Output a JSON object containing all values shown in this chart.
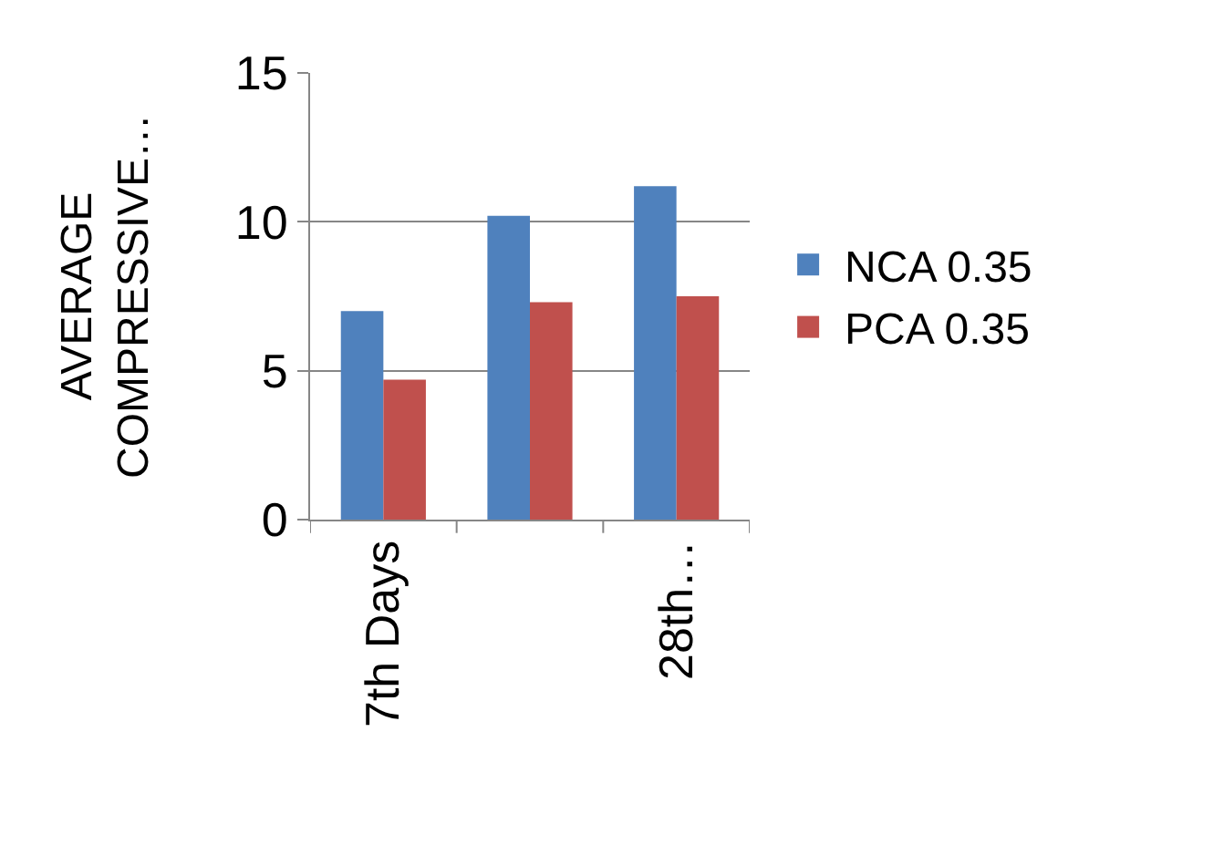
{
  "chart_data": {
    "type": "bar",
    "ylabel": "AVERAGE\nCOMPRESSIVE…",
    "categories": [
      "7th Days",
      null,
      "28th…"
    ],
    "series": [
      {
        "name": "NCA 0.35",
        "color": "#4f81bd",
        "values": [
          7.0,
          10.2,
          11.2
        ]
      },
      {
        "name": "PCA 0.35",
        "color": "#c0504d",
        "values": [
          4.7,
          7.3,
          7.5
        ]
      }
    ],
    "ylim": [
      0,
      15
    ],
    "yticks": [
      0,
      5,
      10,
      15
    ],
    "grid": "y",
    "legend": "right"
  }
}
